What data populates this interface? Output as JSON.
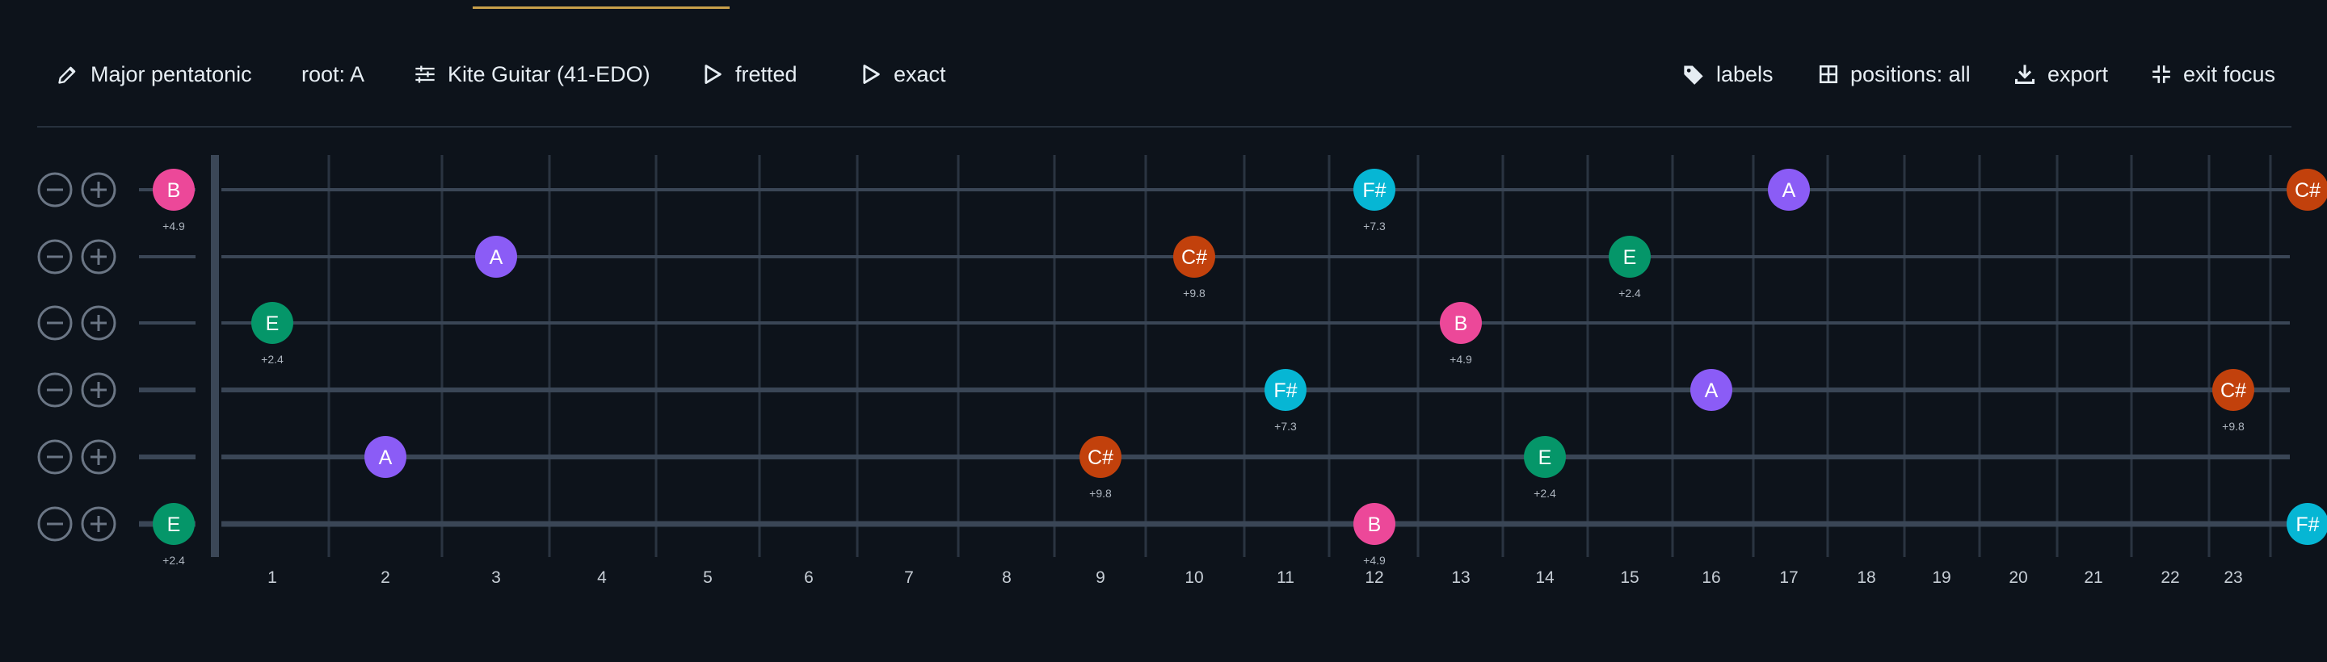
{
  "toolbar": {
    "scale_label": "Major pentatonic",
    "root_label": "root: A",
    "tuning_label": "Kite Guitar (41-EDO)",
    "mode_label": "fretted",
    "intonation_label": "exact",
    "labels_label": "labels",
    "positions_label": "positions: all",
    "export_label": "export",
    "exit_focus_label": "exit focus"
  },
  "icons": {
    "scale": "pencil-icon",
    "tuning": "sliders-icon",
    "play1": "play-icon",
    "play2": "play-icon",
    "labels": "tag-icon",
    "positions": "grid-icon",
    "export": "download-icon",
    "exit_focus": "collapse-icon"
  },
  "colors": {
    "background": "#0d131b",
    "A": "#8b5cf6",
    "B": "#ec4899",
    "C#": "#c2410c",
    "E": "#059669",
    "F#": "#06b6d4",
    "accent_underline": "#c9a04a"
  },
  "fretboard": {
    "string_controls": {
      "minus": "−",
      "plus": "+"
    },
    "strings": 6,
    "fret_numbers": [
      "1",
      "2",
      "3",
      "4",
      "5",
      "6",
      "7",
      "8",
      "9",
      "10",
      "11",
      "12",
      "13",
      "14",
      "15",
      "16",
      "17",
      "18",
      "19",
      "20",
      "21",
      "22",
      "23"
    ],
    "notes": [
      {
        "string": 0,
        "fret": 0,
        "note": "B",
        "cents": "+4.9"
      },
      {
        "string": 0,
        "fret": 12,
        "note": "F#",
        "cents": "+7.3"
      },
      {
        "string": 0,
        "fret": 17,
        "note": "A",
        "cents": ""
      },
      {
        "string": 0,
        "fret": "edge",
        "note": "C#",
        "cents": ""
      },
      {
        "string": 1,
        "fret": 3,
        "note": "A",
        "cents": ""
      },
      {
        "string": 1,
        "fret": 10,
        "note": "C#",
        "cents": "+9.8"
      },
      {
        "string": 1,
        "fret": 15,
        "note": "E",
        "cents": "+2.4"
      },
      {
        "string": 2,
        "fret": 1,
        "note": "E",
        "cents": "+2.4"
      },
      {
        "string": 2,
        "fret": 13,
        "note": "B",
        "cents": "+4.9"
      },
      {
        "string": 3,
        "fret": 11,
        "note": "F#",
        "cents": "+7.3"
      },
      {
        "string": 3,
        "fret": 16,
        "note": "A",
        "cents": ""
      },
      {
        "string": 3,
        "fret": 23,
        "note": "C#",
        "cents": "+9.8"
      },
      {
        "string": 4,
        "fret": 2,
        "note": "A",
        "cents": ""
      },
      {
        "string": 4,
        "fret": 9,
        "note": "C#",
        "cents": "+9.8"
      },
      {
        "string": 4,
        "fret": 14,
        "note": "E",
        "cents": "+2.4"
      },
      {
        "string": 5,
        "fret": 0,
        "note": "E",
        "cents": "+2.4"
      },
      {
        "string": 5,
        "fret": 12,
        "note": "B",
        "cents": "+4.9"
      },
      {
        "string": 5,
        "fret": "edge",
        "note": "F#",
        "cents": ""
      }
    ]
  }
}
